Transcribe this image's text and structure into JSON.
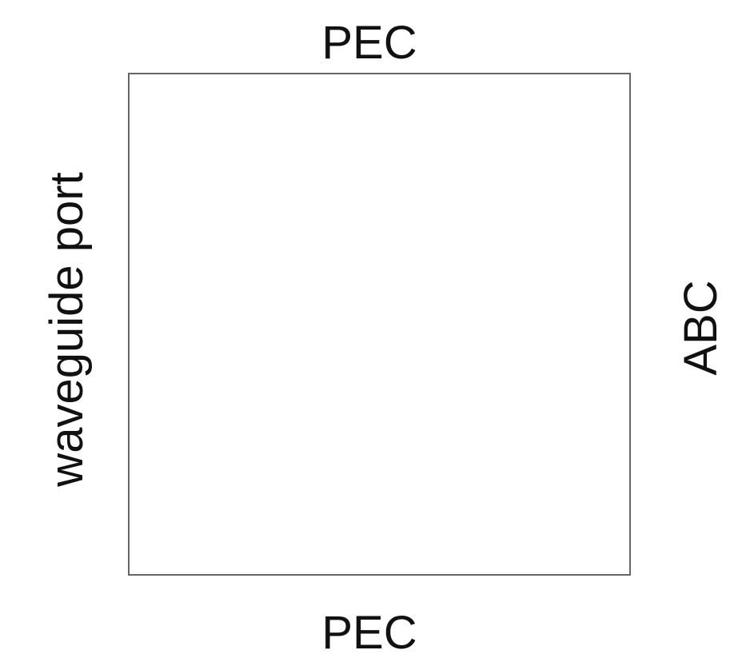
{
  "diagram": {
    "boundaries": {
      "top": "PEC",
      "bottom": "PEC",
      "left": "waveguide port",
      "right": "ABC"
    },
    "colors": {
      "border": "#666666",
      "text": "#111111",
      "background": "#ffffff"
    }
  }
}
